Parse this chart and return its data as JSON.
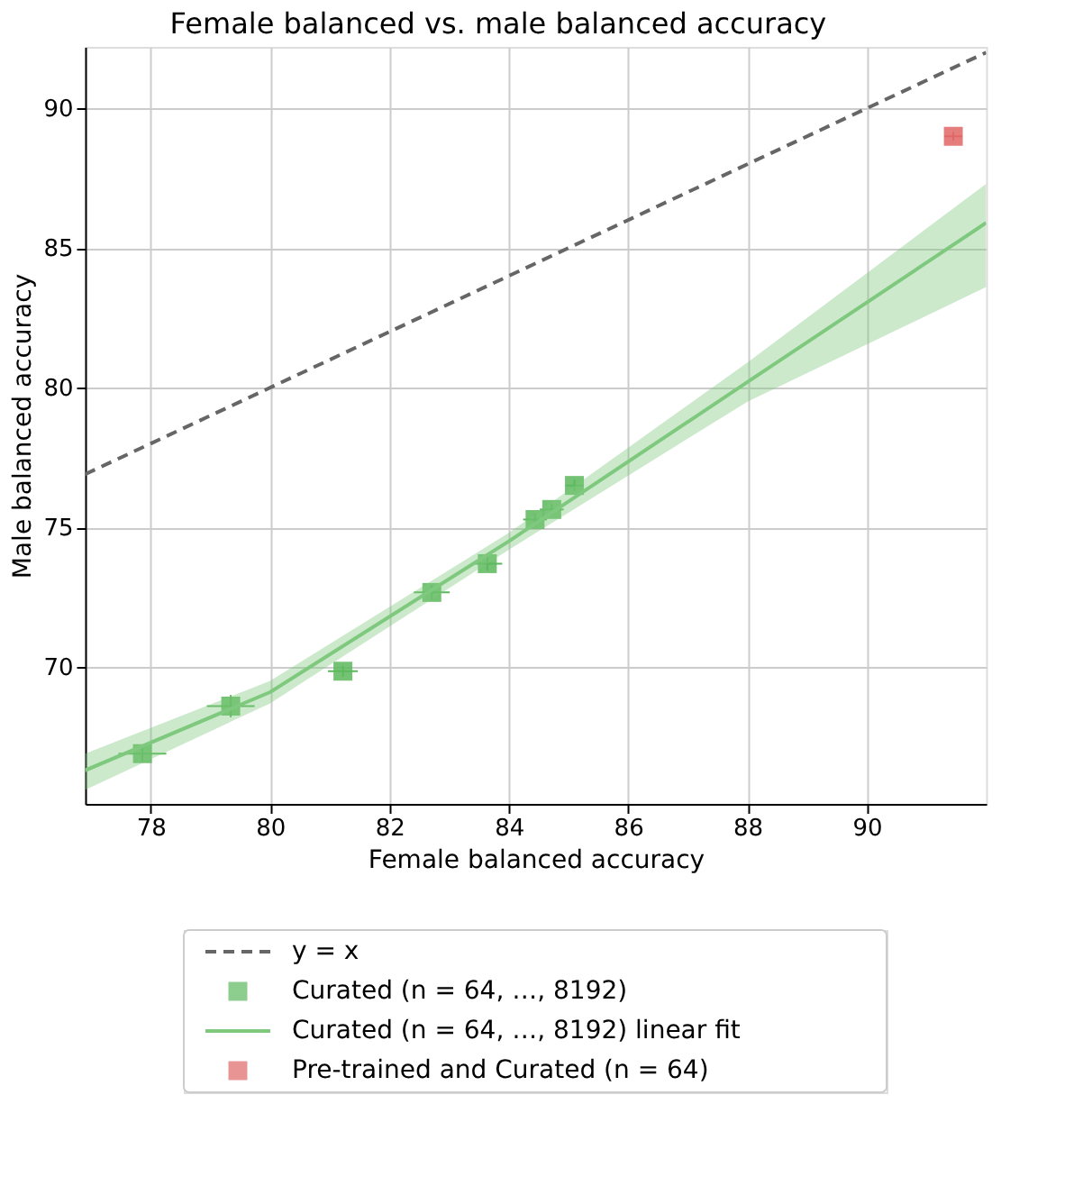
{
  "chart_data": {
    "type": "scatter",
    "title": "Female balanced vs. male balanced accuracy",
    "xlabel": "Female balanced accuracy",
    "ylabel": "Male balanced accuracy",
    "xlim": [
      76.9,
      92.0
    ],
    "ylim": [
      65.1,
      92.2
    ],
    "xticks": [
      78,
      80,
      82,
      84,
      86,
      88,
      90
    ],
    "yticks": [
      70,
      75,
      80,
      85,
      90
    ],
    "grid": true,
    "legend": "bottom",
    "marker": "square",
    "series": [
      {
        "name": "y = x",
        "type": "line",
        "marker": "none",
        "line_style": "dashed",
        "color": "#666666",
        "x": [
          76.9,
          92.0
        ],
        "values": [
          76.9,
          92.0
        ]
      },
      {
        "name": "Curated (n = 64, …, 8192)",
        "color": "#5cb85c",
        "x": [
          77.86,
          79.34,
          81.22,
          82.71,
          83.64,
          84.44,
          84.72,
          85.1
        ],
        "values": [
          66.9,
          68.6,
          69.85,
          72.67,
          73.7,
          75.28,
          75.64,
          76.5
        ],
        "xerrors": [
          0.4,
          0.4,
          0.25,
          0.3,
          0.25,
          0.2,
          0.2,
          0.15
        ],
        "errors": [
          0.3,
          0.4,
          0.2,
          0.25,
          0.25,
          0.2,
          0.2,
          0.2
        ]
      },
      {
        "name": "Curated (n = 64, …, 8192) linear fit",
        "type": "line",
        "marker": "none",
        "line_style": "solid",
        "color": "#7fc97f",
        "x": [
          76.9,
          80,
          84,
          88,
          92
        ],
        "values": [
          66.3,
          69.1,
          74.5,
          80.2,
          85.9
        ],
        "lower": [
          65.6,
          68.7,
          74.2,
          79.5,
          83.6
        ],
        "upper": [
          66.9,
          69.5,
          74.8,
          80.9,
          87.3
        ]
      },
      {
        "name": "Pre-trained and Curated (n = 64)",
        "color": "#e06666",
        "x": [
          91.45
        ],
        "values": [
          89.0
        ],
        "xerrors": [
          0.15
        ],
        "errors": [
          0.15
        ]
      }
    ]
  }
}
